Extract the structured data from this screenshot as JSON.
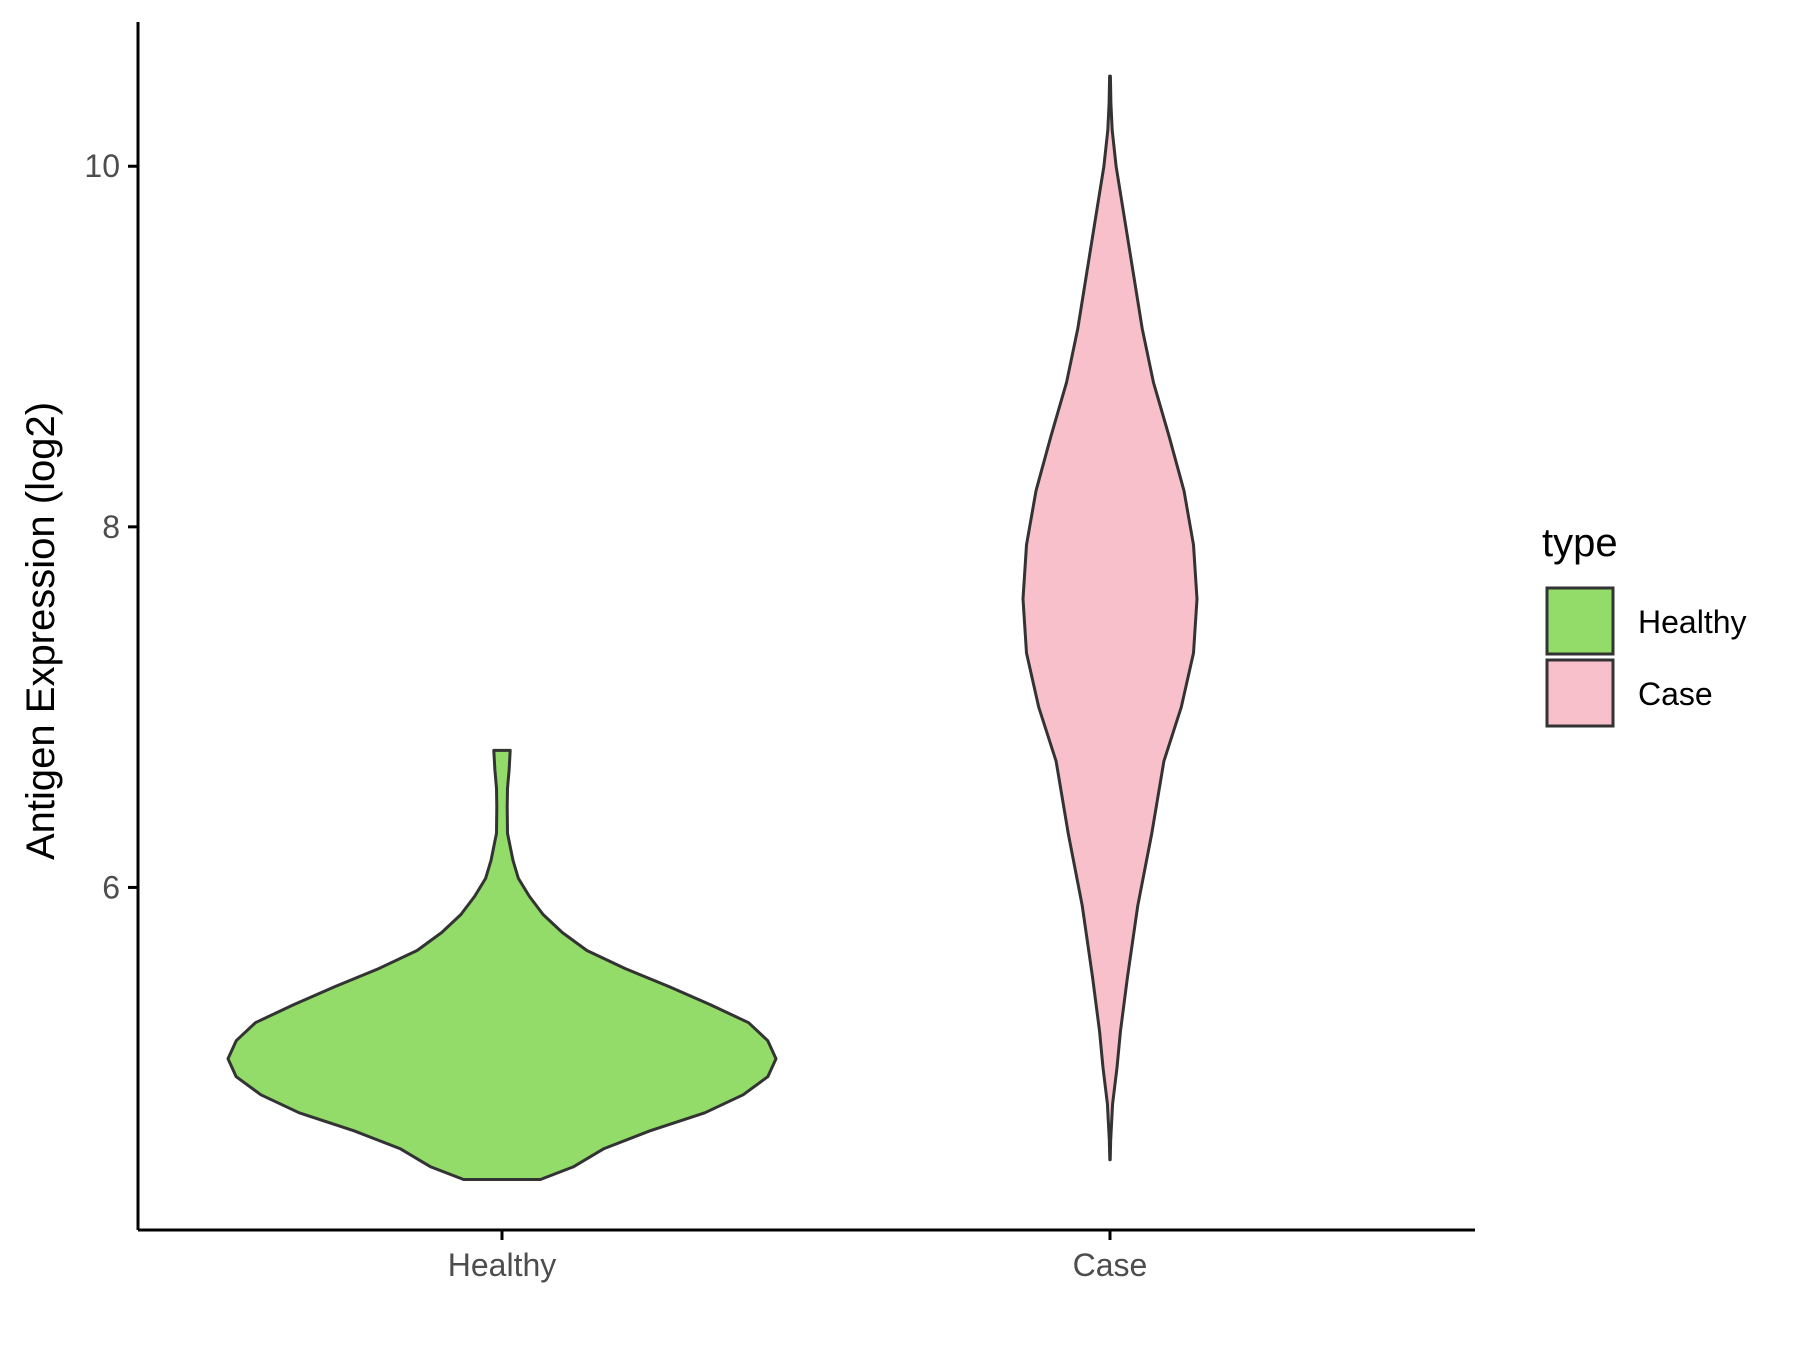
{
  "chart_data": {
    "type": "violin",
    "ylabel": "Antigen Expression (log2)",
    "xlabel": "",
    "ylim": [
      4.1,
      10.8
    ],
    "y_ticks": [
      6,
      8,
      10
    ],
    "categories": [
      "Healthy",
      "Case"
    ],
    "legend": {
      "title": "type",
      "position": "right"
    },
    "grid": false,
    "series": [
      {
        "name": "Healthy",
        "color": "#93DC6A",
        "range": [
          4.38,
          6.76
        ],
        "density_profile": [
          [
            4.38,
            0.14
          ],
          [
            4.45,
            0.26
          ],
          [
            4.55,
            0.37
          ],
          [
            4.65,
            0.54
          ],
          [
            4.75,
            0.74
          ],
          [
            4.85,
            0.88
          ],
          [
            4.95,
            0.97
          ],
          [
            5.05,
            1.0
          ],
          [
            5.15,
            0.97
          ],
          [
            5.25,
            0.9
          ],
          [
            5.35,
            0.76
          ],
          [
            5.45,
            0.61
          ],
          [
            5.55,
            0.45
          ],
          [
            5.65,
            0.31
          ],
          [
            5.75,
            0.22
          ],
          [
            5.85,
            0.15
          ],
          [
            5.95,
            0.1
          ],
          [
            6.05,
            0.06
          ],
          [
            6.15,
            0.04
          ],
          [
            6.3,
            0.02
          ],
          [
            6.45,
            0.019
          ],
          [
            6.55,
            0.02
          ],
          [
            6.65,
            0.026
          ],
          [
            6.76,
            0.03
          ]
        ]
      },
      {
        "name": "Case",
        "color": "#F7C0CB",
        "range": [
          4.49,
          10.5
        ],
        "density_profile": [
          [
            4.49,
            0.002
          ],
          [
            4.6,
            0.008
          ],
          [
            4.8,
            0.03
          ],
          [
            5.0,
            0.08
          ],
          [
            5.2,
            0.12
          ],
          [
            5.5,
            0.2
          ],
          [
            5.9,
            0.32
          ],
          [
            6.3,
            0.48
          ],
          [
            6.7,
            0.62
          ],
          [
            7.0,
            0.82
          ],
          [
            7.3,
            0.96
          ],
          [
            7.6,
            1.0
          ],
          [
            7.9,
            0.96
          ],
          [
            8.2,
            0.85
          ],
          [
            8.5,
            0.68
          ],
          [
            8.8,
            0.5
          ],
          [
            9.1,
            0.37
          ],
          [
            9.4,
            0.27
          ],
          [
            9.7,
            0.17
          ],
          [
            10.0,
            0.07
          ],
          [
            10.2,
            0.025
          ],
          [
            10.35,
            0.01
          ],
          [
            10.5,
            0.005
          ]
        ]
      }
    ]
  }
}
